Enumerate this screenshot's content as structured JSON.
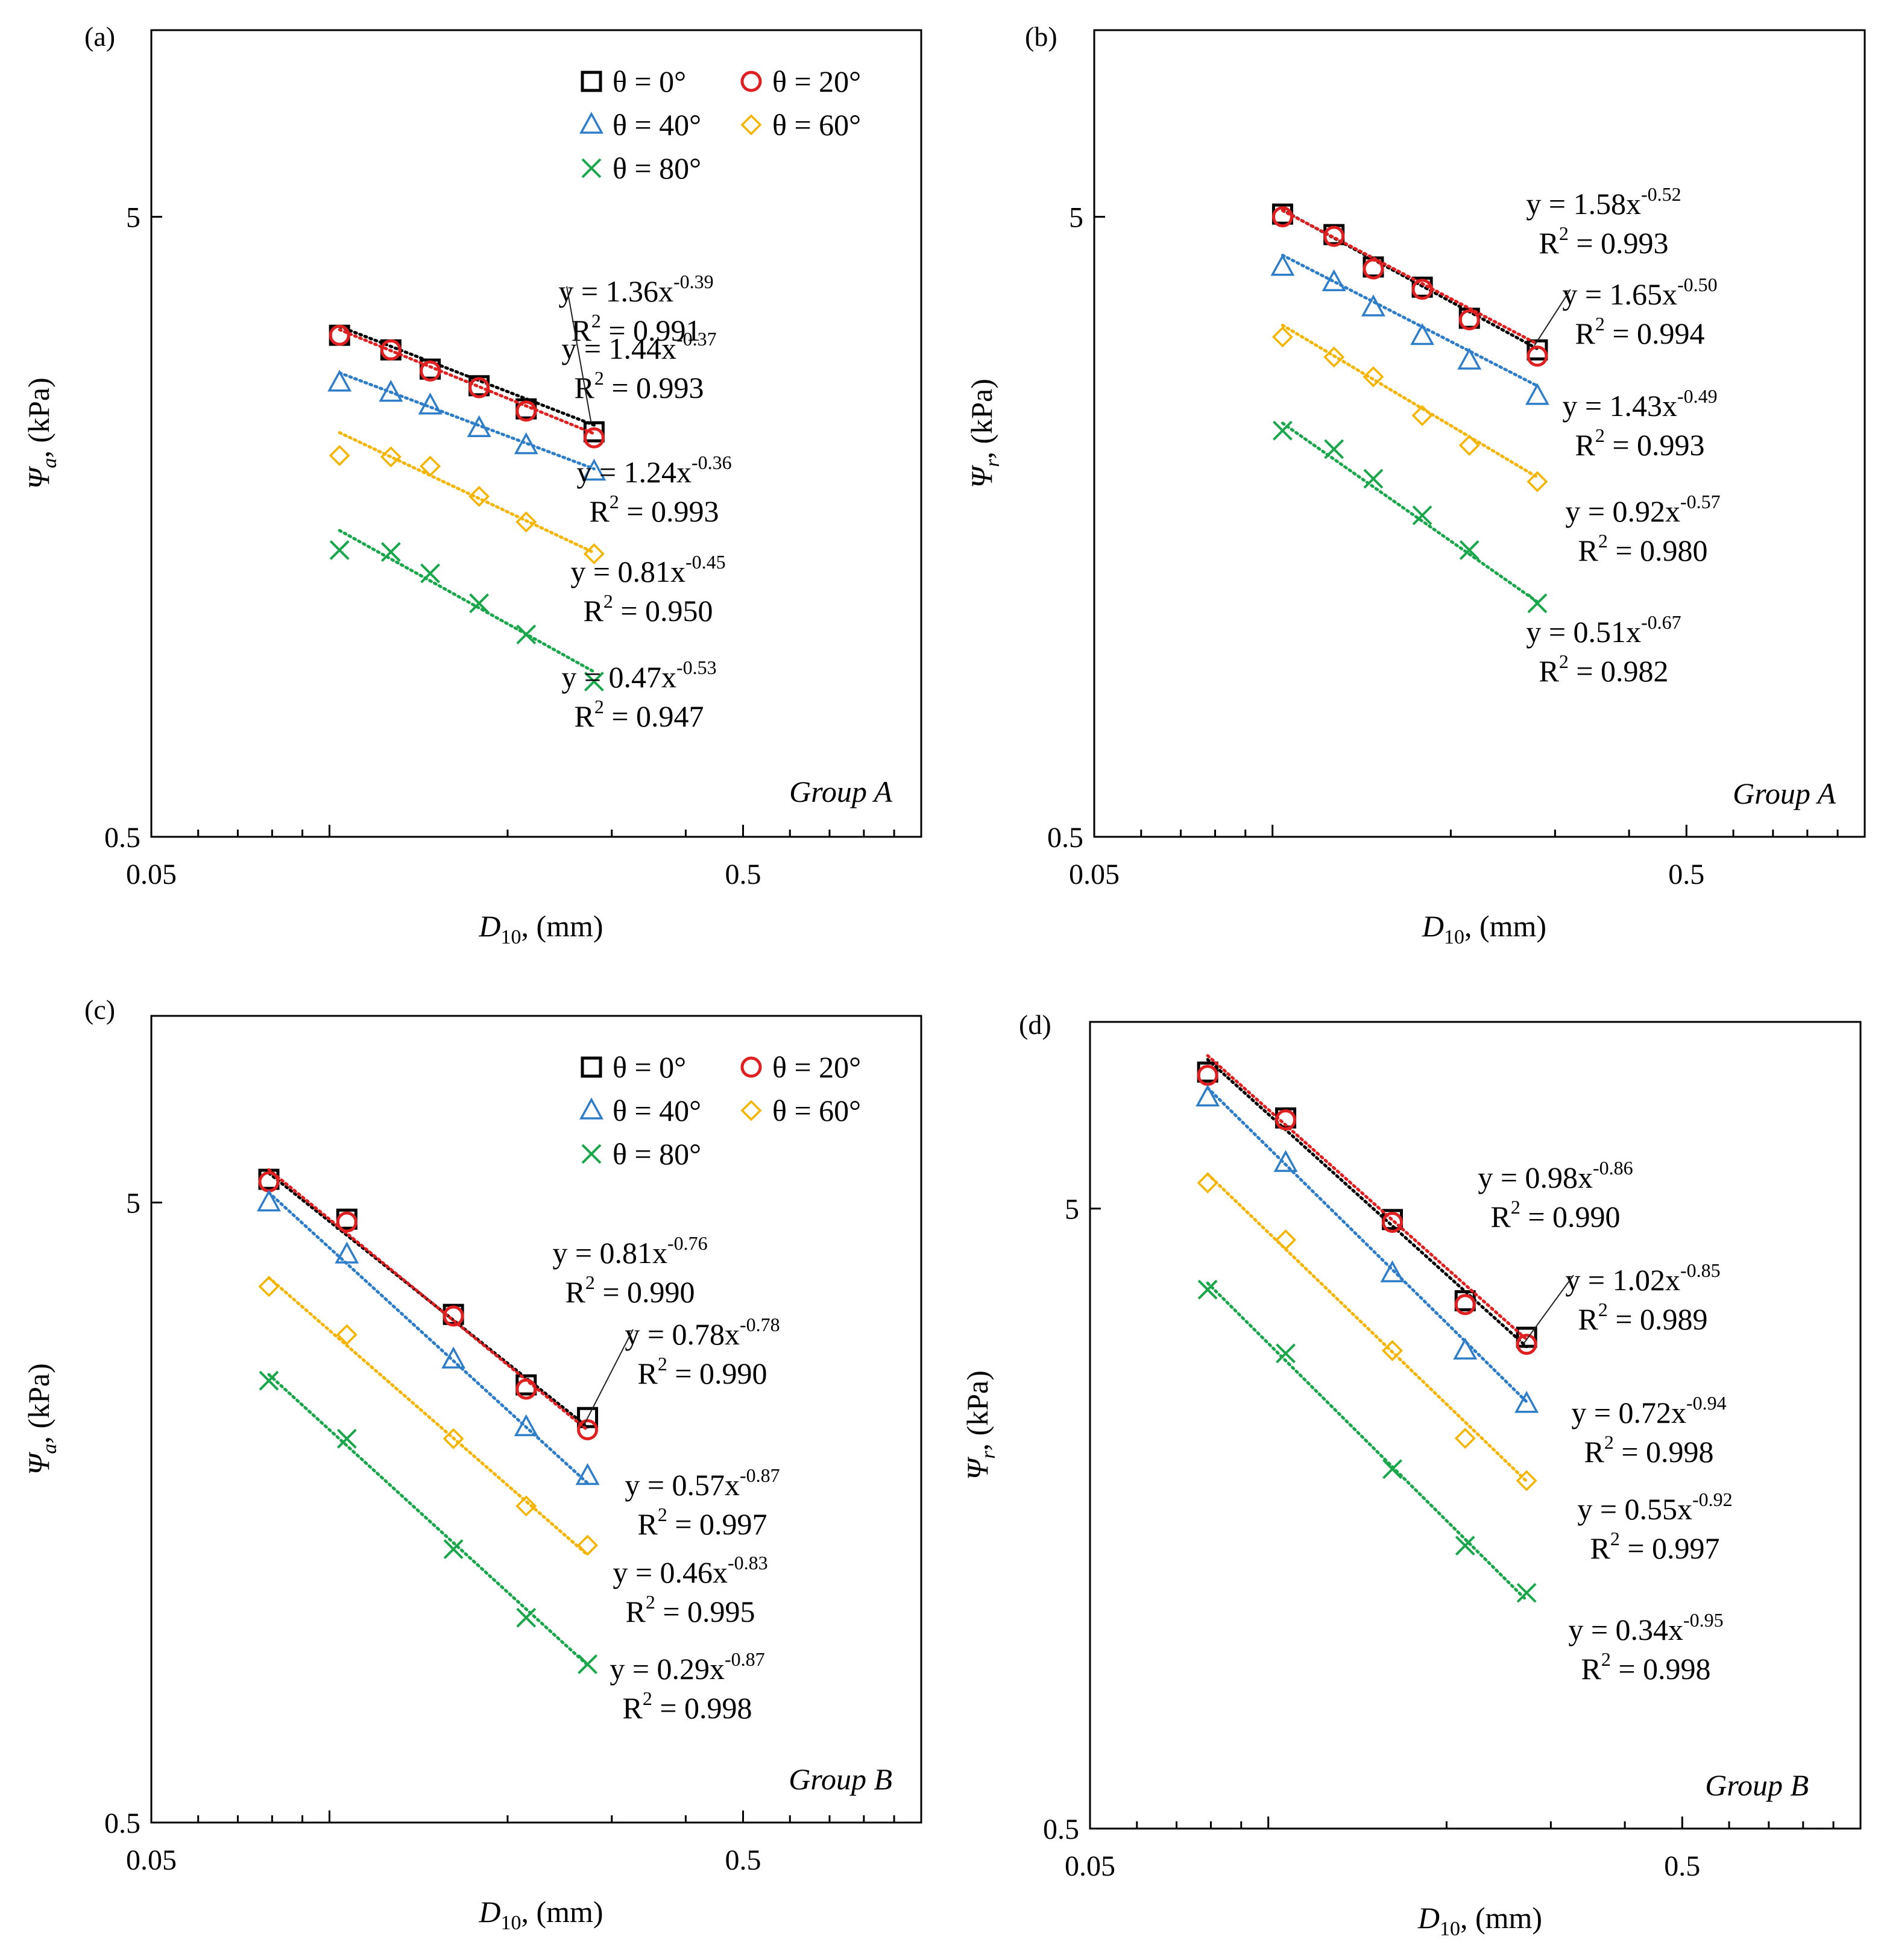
{
  "figure": {
    "legend_labels": [
      "θ = 0°",
      "θ = 20°",
      "θ = 40°",
      "θ = 60°",
      "θ = 80°"
    ],
    "series_colors": [
      "#000000",
      "#e02020",
      "#2e7dc8",
      "#f4b400",
      "#1aa64a"
    ]
  },
  "chart_data": [
    {
      "panel": "(a)",
      "type": "scatter",
      "scale": "log-log",
      "xlabel": "D10, (mm)",
      "xlabel_main": "D",
      "xlabel_sub": "10",
      "xlabel_rest": ", (mm)",
      "ylabel": "Ψa, (kPa)",
      "ylabel_sub": "a",
      "xlim": [
        0.05,
        1.0
      ],
      "ylim": [
        0.5,
        10
      ],
      "xticks": [
        "0.05",
        "0.5"
      ],
      "yticks": [
        "0.5",
        "5"
      ],
      "group": "Group A",
      "legend": true,
      "x": [
        0.104,
        0.127,
        0.148,
        0.179,
        0.215,
        0.28
      ],
      "series": [
        {
          "name": "θ = 0°",
          "marker": "square",
          "values": [
            3.22,
            3.05,
            2.84,
            2.67,
            2.45,
            2.25
          ],
          "fit": {
            "a": 1.44,
            "b": -0.37
          },
          "equation": "y = 1.44x",
          "exponent": "-0.37",
          "r2_label": "R",
          "r2_value": " = 0.993"
        },
        {
          "name": "θ = 20°",
          "marker": "circle",
          "values": [
            3.22,
            3.05,
            2.82,
            2.65,
            2.43,
            2.2
          ],
          "fit": {
            "a": 1.36,
            "b": -0.39
          },
          "equation": "y = 1.36x",
          "exponent": "-0.39",
          "r2_label": "R",
          "r2_value": " = 0.991"
        },
        {
          "name": "θ = 40°",
          "marker": "triangle",
          "values": [
            2.7,
            2.6,
            2.48,
            2.28,
            2.14,
            1.94
          ],
          "fit": {
            "a": 1.24,
            "b": -0.36
          },
          "equation": "y = 1.24x",
          "exponent": "-0.36",
          "r2_label": "R",
          "r2_value": " = 0.993"
        },
        {
          "name": "θ = 60°",
          "marker": "diamond",
          "values": [
            2.06,
            2.05,
            1.98,
            1.77,
            1.61,
            1.43
          ],
          "fit": {
            "a": 0.81,
            "b": -0.45
          },
          "equation": "y = 0.81x",
          "exponent": "-0.45",
          "r2_label": "R",
          "r2_value": " = 0.950"
        },
        {
          "name": "θ = 80°",
          "marker": "x",
          "values": [
            1.45,
            1.44,
            1.33,
            1.19,
            1.06,
            0.89
          ],
          "fit": {
            "a": 0.47,
            "b": -0.53
          },
          "equation": "y = 0.47x",
          "exponent": "-0.53",
          "r2_label": "R",
          "r2_value": " = 0.947"
        }
      ]
    },
    {
      "panel": "(b)",
      "type": "scatter",
      "scale": "log-log",
      "xlabel": "D10, (mm)",
      "xlabel_main": "D",
      "xlabel_sub": "10",
      "xlabel_rest": ", (mm)",
      "ylabel": "Ψr, (kPa)",
      "ylabel_sub": "r",
      "xlim": [
        0.05,
        1.0
      ],
      "ylim": [
        0.5,
        10
      ],
      "xticks": [
        "0.05",
        "0.5"
      ],
      "yticks": [
        "0.5",
        "5"
      ],
      "group": "Group A",
      "legend": false,
      "x": [
        0.104,
        0.127,
        0.148,
        0.179,
        0.215,
        0.28
      ],
      "series": [
        {
          "name": "θ = 0°",
          "marker": "square",
          "values": [
            5.05,
            4.68,
            4.15,
            3.85,
            3.43,
            3.05
          ],
          "fit": {
            "a": 1.58,
            "b": -0.52
          },
          "equation": "y = 1.58x",
          "exponent": "-0.52",
          "r2_label": "R",
          "r2_value": " = 0.993"
        },
        {
          "name": "θ = 20°",
          "marker": "circle",
          "values": [
            5.0,
            4.65,
            4.12,
            3.82,
            3.41,
            2.98
          ],
          "fit": {
            "a": 1.65,
            "b": -0.5
          },
          "equation": "y = 1.65x",
          "exponent": "-0.50",
          "r2_label": "R",
          "r2_value": " = 0.994"
        },
        {
          "name": "θ = 40°",
          "marker": "triangle",
          "values": [
            4.15,
            3.92,
            3.57,
            3.21,
            2.93,
            2.57
          ],
          "fit": {
            "a": 1.43,
            "b": -0.49
          },
          "equation": "y = 1.43x",
          "exponent": "-0.49",
          "r2_label": "R",
          "r2_value": " = 0.993"
        },
        {
          "name": "θ = 60°",
          "marker": "diamond",
          "values": [
            3.2,
            2.97,
            2.76,
            2.39,
            2.14,
            1.87
          ],
          "fit": {
            "a": 0.92,
            "b": -0.57
          },
          "equation": "y = 0.92x",
          "exponent": "-0.57",
          "r2_label": "R",
          "r2_value": " = 0.980"
        },
        {
          "name": "θ = 80°",
          "marker": "x",
          "values": [
            2.26,
            2.11,
            1.89,
            1.65,
            1.45,
            1.19
          ],
          "fit": {
            "a": 0.51,
            "b": -0.67
          },
          "equation": "y = 0.51x",
          "exponent": "-0.67",
          "r2_label": "R",
          "r2_value": " = 0.982"
        }
      ]
    },
    {
      "panel": "(c)",
      "type": "scatter",
      "scale": "log-log",
      "xlabel": "D10, (mm)",
      "xlabel_main": "D",
      "xlabel_sub": "10",
      "xlabel_rest": ", (mm)",
      "ylabel": "Ψa, (kPa)",
      "ylabel_sub": "a",
      "xlim": [
        0.05,
        1.0
      ],
      "ylim": [
        0.5,
        10
      ],
      "xticks": [
        "0.05",
        "0.5"
      ],
      "yticks": [
        "0.5",
        "5"
      ],
      "group": "Group B",
      "legend": true,
      "x": [
        0.079,
        0.107,
        0.162,
        0.215,
        0.273
      ],
      "series": [
        {
          "name": "θ = 0°",
          "marker": "square",
          "values": [
            5.45,
            4.7,
            3.3,
            2.54,
            2.25
          ],
          "fit": {
            "a": 0.81,
            "b": -0.76
          },
          "equation": "y = 0.81x",
          "exponent": "-0.76",
          "r2_label": "R",
          "r2_value": " = 0.990"
        },
        {
          "name": "θ = 20°",
          "marker": "circle",
          "values": [
            5.4,
            4.65,
            3.28,
            2.5,
            2.15
          ],
          "fit": {
            "a": 0.78,
            "b": -0.78
          },
          "equation": "y = 0.78x",
          "exponent": "-0.78",
          "r2_label": "R",
          "r2_value": " = 0.990"
        },
        {
          "name": "θ = 40°",
          "marker": "triangle",
          "values": [
            5.0,
            4.12,
            2.79,
            2.17,
            1.81
          ],
          "fit": {
            "a": 0.57,
            "b": -0.87
          },
          "equation": "y = 0.57x",
          "exponent": "-0.87",
          "r2_label": "R",
          "r2_value": " = 0.997"
        },
        {
          "name": "θ = 60°",
          "marker": "diamond",
          "values": [
            3.66,
            3.06,
            2.08,
            1.62,
            1.4
          ],
          "fit": {
            "a": 0.46,
            "b": -0.83
          },
          "equation": "y = 0.46x",
          "exponent": "-0.83",
          "r2_label": "R",
          "r2_value": " = 0.995"
        },
        {
          "name": "θ = 80°",
          "marker": "x",
          "values": [
            2.58,
            2.08,
            1.38,
            1.07,
            0.9
          ],
          "fit": {
            "a": 0.29,
            "b": -0.87
          },
          "equation": "y = 0.29x",
          "exponent": "-0.87",
          "r2_label": "R",
          "r2_value": " = 0.998"
        }
      ]
    },
    {
      "panel": "(d)",
      "type": "scatter",
      "scale": "log-log",
      "xlabel": "D10, (mm)",
      "xlabel_main": "D",
      "xlabel_sub": "10",
      "xlabel_rest": ", (mm)",
      "ylabel": "Ψr, (kPa)",
      "ylabel_sub": "r",
      "xlim": [
        0.05,
        1.0
      ],
      "ylim": [
        0.5,
        10
      ],
      "xticks": [
        "0.05",
        "0.5"
      ],
      "yticks": [
        "0.5",
        "5"
      ],
      "group": "Group B",
      "legend": false,
      "x": [
        0.079,
        0.107,
        0.162,
        0.215,
        0.273
      ],
      "series": [
        {
          "name": "θ = 0°",
          "marker": "square",
          "values": [
            8.3,
            7.0,
            4.8,
            3.55,
            3.1
          ],
          "fit": {
            "a": 0.98,
            "b": -0.86
          },
          "equation": "y = 0.98x",
          "exponent": "-0.86",
          "r2_label": "R",
          "r2_value": " = 0.990"
        },
        {
          "name": "θ = 20°",
          "marker": "circle",
          "values": [
            8.2,
            6.95,
            4.75,
            3.5,
            3.02
          ],
          "fit": {
            "a": 1.02,
            "b": -0.85
          },
          "equation": "y = 1.02x",
          "exponent": "-0.85",
          "r2_label": "R",
          "r2_value": " = 0.989"
        },
        {
          "name": "θ = 40°",
          "marker": "triangle",
          "values": [
            7.55,
            5.92,
            3.93,
            2.95,
            2.42
          ],
          "fit": {
            "a": 0.72,
            "b": -0.94
          },
          "equation": "y = 0.72x",
          "exponent": "-0.94",
          "r2_label": "R",
          "r2_value": " = 0.998"
        },
        {
          "name": "θ = 60°",
          "marker": "diamond",
          "values": [
            5.5,
            4.45,
            2.95,
            2.13,
            1.82
          ],
          "fit": {
            "a": 0.55,
            "b": -0.92
          },
          "equation": "y = 0.55x",
          "exponent": "-0.92",
          "r2_label": "R",
          "r2_value": " = 0.997"
        },
        {
          "name": "θ = 80°",
          "marker": "x",
          "values": [
            3.7,
            2.92,
            1.9,
            1.43,
            1.2
          ],
          "fit": {
            "a": 0.34,
            "b": -0.95
          },
          "equation": "y = 0.34x",
          "exponent": "-0.95",
          "r2_label": "R",
          "r2_value": " = 0.998"
        }
      ]
    }
  ]
}
